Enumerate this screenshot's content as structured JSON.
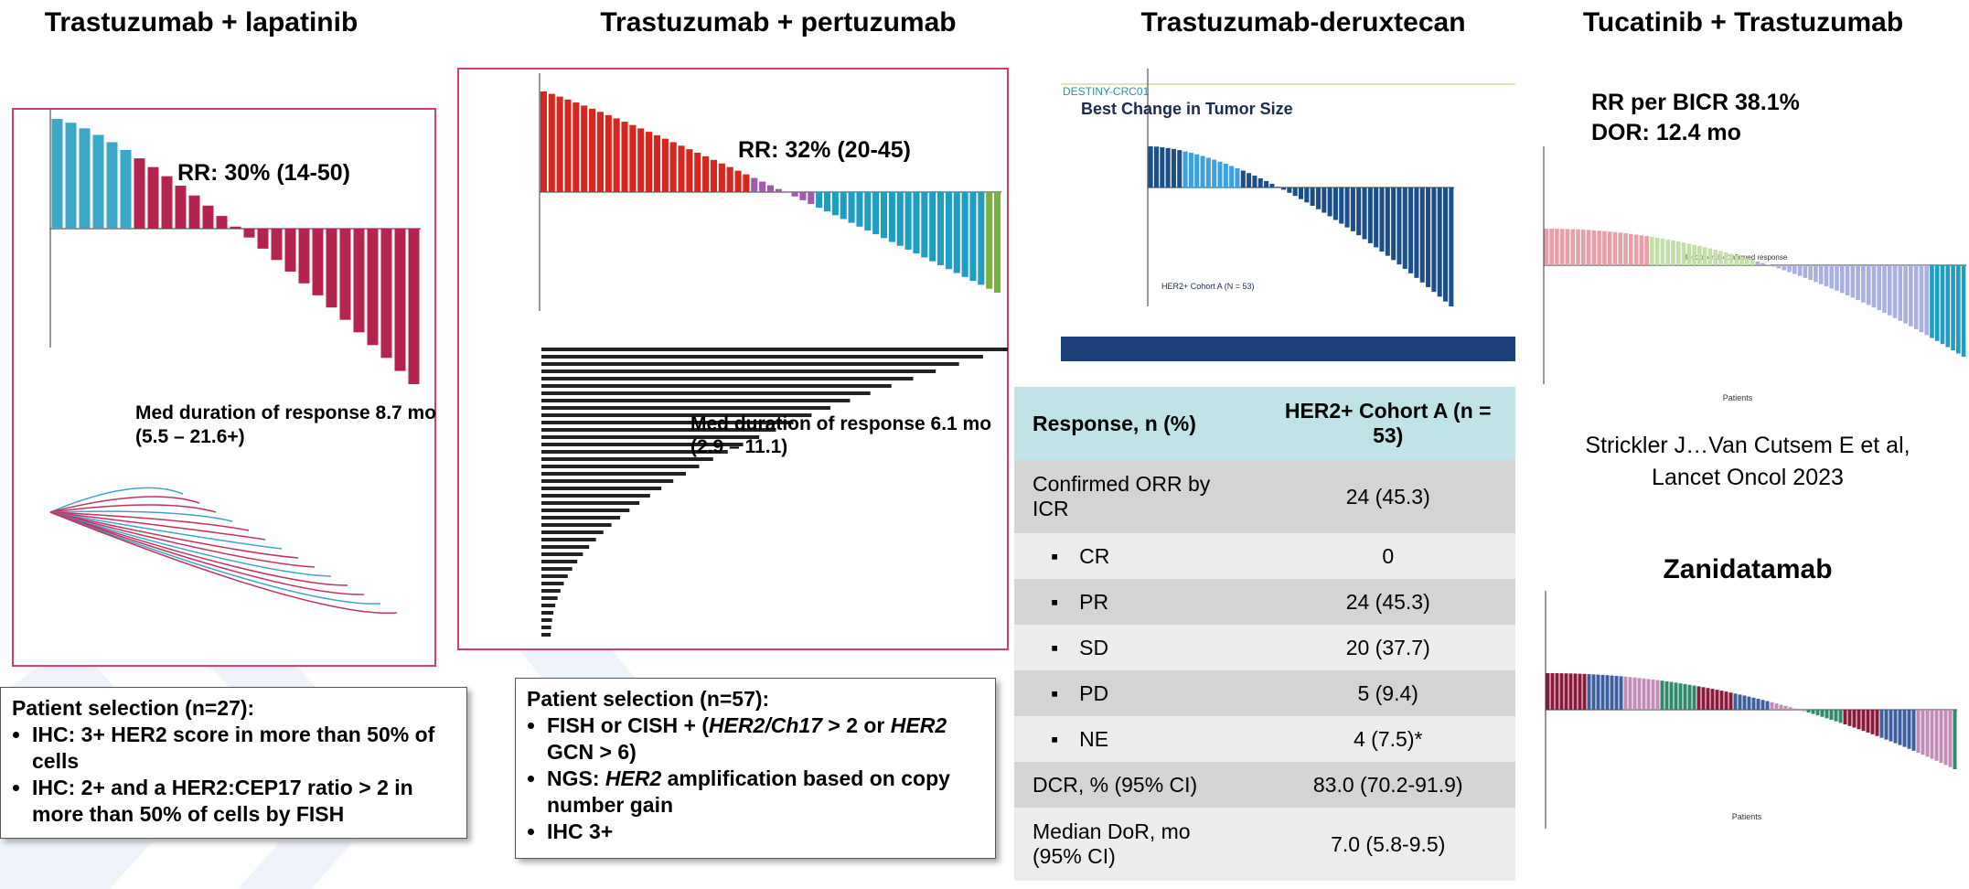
{
  "titles": [
    "Trastuzumab + lapatinib",
    "Trastuzumab + pertuzumab",
    "Trastuzumab-deruxtecan",
    "Tucatinib + Trastuzumab"
  ],
  "lapatinib": {
    "rr": "RR: 30% (14-50)",
    "duration": [
      "Med duration of response 8.7 mo",
      "(5.5 – 21.6+)"
    ],
    "selection": {
      "heading": "Patient selection (n=27):",
      "bullets": [
        "IHC: 3+ HER2 score in more than 50% of cells",
        "IHC: 2+ and a HER2:CEP17 ratio > 2 in more than 50% of cells by FISH"
      ]
    }
  },
  "pertuzumab": {
    "rr": "RR: 32% (20-45)",
    "duration": [
      "Med duration of response 6.1 mo",
      "(2.9 – 11.1)"
    ],
    "selection": {
      "heading": "Patient selection (n=57):",
      "bullets": [
        [
          "FISH or CISH + (",
          "HER2/Ch17",
          " > 2 or ",
          "HER2",
          " GCN > 6)"
        ],
        [
          "NGS: ",
          "HER2",
          " amplification based on copy number gain"
        ],
        [
          "IHC 3+"
        ]
      ]
    }
  },
  "deruxtecan": {
    "study": "DESTINY-CRC01",
    "figure_title": "Best Change in Tumor Size",
    "cohort": "HER2+ Cohort A (N = 53)",
    "table": {
      "header": [
        "Response, n (%)",
        "HER2+ Cohort A (n = 53)"
      ],
      "rows": [
        [
          "Confirmed ORR by ICR",
          "24 (45.3)"
        ],
        [
          "CR",
          "0"
        ],
        [
          "PR",
          "24 (45.3)"
        ],
        [
          "SD",
          "20 (37.7)"
        ],
        [
          "PD",
          "5 (9.4)"
        ],
        [
          "NE",
          "4 (7.5)*"
        ],
        [
          "DCR, % (95% CI)",
          "83.0 (70.2-91.9)"
        ],
        [
          "Median DoR, mo (95% CI)",
          "7.0 (5.8-9.5)"
        ]
      ]
    }
  },
  "tucatinib": {
    "rr": "RR per BICR 38.1%",
    "dor": "DOR: 12.4 mo",
    "legend_title": "Best overall confirmed response",
    "x_label": "Patients",
    "citation": [
      "Strickler J…Van Cutsem E et al,",
      "Lancet Oncol 2023"
    ]
  },
  "zanidatamab": {
    "title": "Zanidatamab",
    "x_label": "Patients"
  }
}
